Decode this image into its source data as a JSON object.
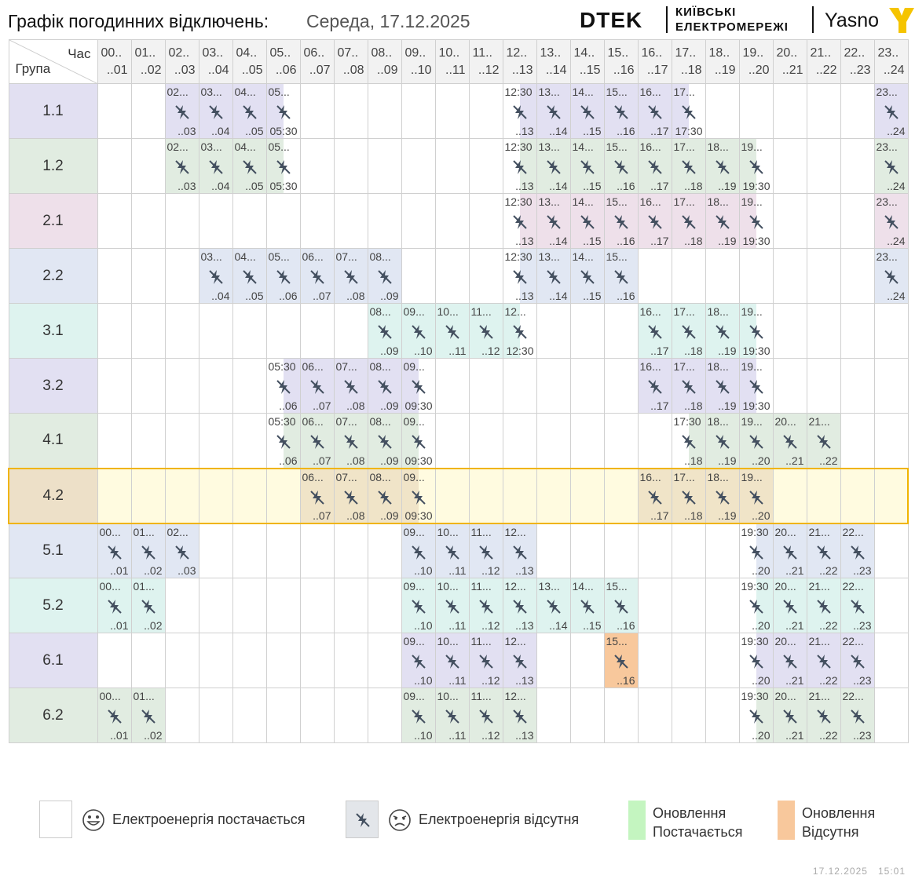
{
  "header": {
    "title": "Графік погодинних відключень:",
    "date": "Середа, 17.12.2025",
    "logo_dtek": "DTEK",
    "logo_kyiv_line1": "КИЇВСЬКІ",
    "logo_kyiv_line2": "ЕЛЕКТРОМЕРЕЖІ",
    "logo_yasno": "Yasno"
  },
  "corner": {
    "hour_label": "Час",
    "group_label": "Група"
  },
  "hours": [
    {
      "a": "00..",
      "b": "..01"
    },
    {
      "a": "01..",
      "b": "..02"
    },
    {
      "a": "02..",
      "b": "..03"
    },
    {
      "a": "03..",
      "b": "..04"
    },
    {
      "a": "04..",
      "b": "..05"
    },
    {
      "a": "05..",
      "b": "..06"
    },
    {
      "a": "06..",
      "b": "..07"
    },
    {
      "a": "07..",
      "b": "..08"
    },
    {
      "a": "08..",
      "b": "..09"
    },
    {
      "a": "09..",
      "b": "..10"
    },
    {
      "a": "10..",
      "b": "..11"
    },
    {
      "a": "11..",
      "b": "..12"
    },
    {
      "a": "12..",
      "b": "..13"
    },
    {
      "a": "13..",
      "b": "..14"
    },
    {
      "a": "14..",
      "b": "..15"
    },
    {
      "a": "15..",
      "b": "..16"
    },
    {
      "a": "16..",
      "b": "..17"
    },
    {
      "a": "17..",
      "b": "..18"
    },
    {
      "a": "18..",
      "b": "..19"
    },
    {
      "a": "19..",
      "b": "..20"
    },
    {
      "a": "20..",
      "b": "..21"
    },
    {
      "a": "21..",
      "b": "..22"
    },
    {
      "a": "22..",
      "b": "..23"
    },
    {
      "a": "23..",
      "b": "..24"
    }
  ],
  "groups": [
    {
      "name": "1.1",
      "color": "#e2e0f2",
      "off": [
        [
          2,
          5.5
        ],
        [
          12.5,
          17.5
        ],
        [
          23,
          24
        ]
      ]
    },
    {
      "name": "1.2",
      "color": "#e1ece1",
      "off": [
        [
          2,
          5.5
        ],
        [
          12.5,
          19.5
        ],
        [
          23,
          24
        ]
      ]
    },
    {
      "name": "2.1",
      "color": "#eee0ea",
      "off": [
        [
          12.5,
          19.5
        ],
        [
          23,
          24
        ]
      ]
    },
    {
      "name": "2.2",
      "color": "#e1e7f3",
      "off": [
        [
          3,
          9
        ],
        [
          12.5,
          16
        ],
        [
          23,
          24
        ]
      ]
    },
    {
      "name": "3.1",
      "color": "#def3ef",
      "off": [
        [
          8,
          12.5
        ],
        [
          16,
          19.5
        ]
      ]
    },
    {
      "name": "3.2",
      "color": "#e2e0f2",
      "off": [
        [
          5.5,
          9.5
        ],
        [
          16,
          19.5
        ]
      ]
    },
    {
      "name": "4.1",
      "color": "#e1ece1",
      "off": [
        [
          5.5,
          9.5
        ],
        [
          17.5,
          22
        ]
      ]
    },
    {
      "name": "4.2",
      "color": "#f0e4c8",
      "highlight": true,
      "off": [
        [
          6,
          9.5
        ],
        [
          16,
          20
        ]
      ]
    },
    {
      "name": "5.1",
      "color": "#e1e7f3",
      "off": [
        [
          0,
          3
        ],
        [
          9,
          13
        ],
        [
          19.5,
          23
        ]
      ]
    },
    {
      "name": "5.2",
      "color": "#def3ef",
      "off": [
        [
          0,
          2
        ],
        [
          9,
          16
        ],
        [
          19.5,
          23
        ]
      ]
    },
    {
      "name": "6.1",
      "color": "#e2e0f2",
      "off": [
        [
          9,
          13
        ],
        [
          19.5,
          23
        ]
      ],
      "update_off": [
        [
          15,
          16
        ]
      ]
    },
    {
      "name": "6.2",
      "color": "#e1ece1",
      "off": [
        [
          0,
          2
        ],
        [
          9,
          13
        ],
        [
          19.5,
          23
        ]
      ]
    }
  ],
  "legend": {
    "power_on": "Електроенергія постачається",
    "power_off": "Електроенергія відсутня",
    "update_on_1": "Оновлення",
    "update_on_2": "Постачається",
    "update_off_1": "Оновлення",
    "update_off_2": "Відсутня"
  },
  "colors": {
    "highlight_bg": "#fffbe0",
    "highlight_border": "#f0b400",
    "update_on": "#c4f5c0",
    "update_off": "#f8c89c",
    "off_icon": "#445060"
  },
  "footer": {
    "date": "17.12.2025",
    "time": "15:01"
  }
}
